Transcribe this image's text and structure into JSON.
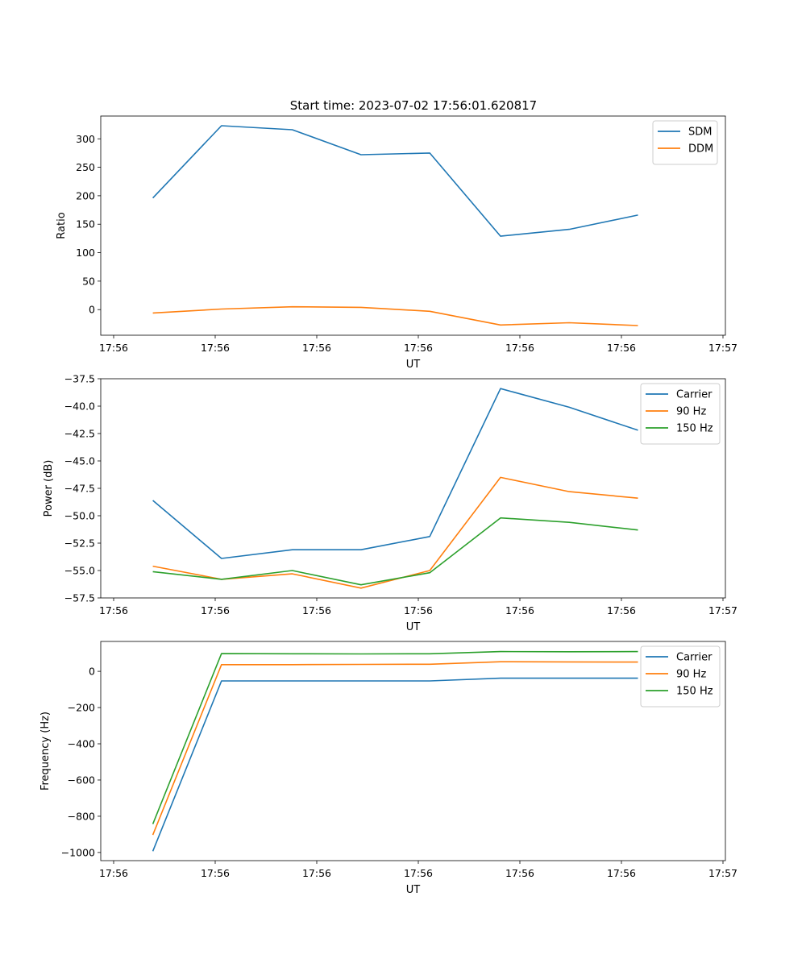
{
  "chart_data": [
    {
      "type": "line",
      "title": "Start time: 2023-07-02 17:56:01.620817",
      "xlabel": "UT",
      "ylabel": "Ratio",
      "x_ticks": [
        "17:56",
        "17:56",
        "17:56",
        "17:56",
        "17:56",
        "17:56",
        "17:57"
      ],
      "x_index": [
        0.5,
        1.16,
        1.84,
        2.5,
        3.16,
        3.84,
        4.5,
        5.16
      ],
      "xlim": [
        0,
        6
      ],
      "ylim": [
        -45,
        340
      ],
      "y_ticks": [
        0,
        50,
        100,
        150,
        200,
        250,
        300
      ],
      "y_tick_labels": [
        "0",
        "50",
        "100",
        "150",
        "200",
        "250",
        "300"
      ],
      "legend_position": "upper right",
      "series": [
        {
          "name": "SDM",
          "color": "#1f77b4",
          "values": [
            196,
            323,
            316,
            272,
            275,
            129,
            141,
            166
          ]
        },
        {
          "name": "DDM",
          "color": "#ff7f0e",
          "values": [
            -6,
            1,
            5,
            4,
            -3,
            -27,
            -23,
            -28
          ]
        }
      ]
    },
    {
      "type": "line",
      "title": "",
      "xlabel": "UT",
      "ylabel": "Power (dB)",
      "x_ticks": [
        "17:56",
        "17:56",
        "17:56",
        "17:56",
        "17:56",
        "17:56",
        "17:57"
      ],
      "x_index": [
        0.5,
        1.16,
        1.84,
        2.5,
        3.16,
        3.84,
        4.5,
        5.16
      ],
      "xlim": [
        0,
        6
      ],
      "ylim": [
        -57.5,
        -37.5
      ],
      "y_ticks": [
        -57.5,
        -55.0,
        -52.5,
        -50.0,
        -47.5,
        -45.0,
        -42.5,
        -40.0,
        -37.5
      ],
      "y_tick_labels": [
        "−57.5",
        "−55.0",
        "−52.5",
        "−50.0",
        "−47.5",
        "−45.0",
        "−42.5",
        "−40.0",
        "−37.5"
      ],
      "legend_position": "upper right",
      "series": [
        {
          "name": "Carrier",
          "color": "#1f77b4",
          "values": [
            -48.6,
            -53.9,
            -53.1,
            -53.1,
            -51.9,
            -38.4,
            -40.1,
            -42.2
          ]
        },
        {
          "name": "90 Hz",
          "color": "#ff7f0e",
          "values": [
            -54.6,
            -55.8,
            -55.3,
            -56.6,
            -55.0,
            -46.5,
            -47.8,
            -48.4
          ]
        },
        {
          "name": "150 Hz",
          "color": "#2ca02c",
          "values": [
            -55.1,
            -55.8,
            -55.0,
            -56.3,
            -55.2,
            -50.2,
            -50.6,
            -51.3
          ]
        }
      ]
    },
    {
      "type": "line",
      "title": "",
      "xlabel": "UT",
      "ylabel": "Frequency (Hz)",
      "x_ticks": [
        "17:56",
        "17:56",
        "17:56",
        "17:56",
        "17:56",
        "17:56",
        "17:57"
      ],
      "x_index": [
        0.5,
        1.16,
        1.84,
        2.5,
        3.16,
        3.84,
        4.5,
        5.16
      ],
      "xlim": [
        0,
        6
      ],
      "ylim": [
        -1045,
        165
      ],
      "y_ticks": [
        -1000,
        -800,
        -600,
        -400,
        -200,
        0
      ],
      "y_tick_labels": [
        "−1000",
        "−800",
        "−600",
        "−400",
        "−200",
        "0"
      ],
      "legend_position": "upper right",
      "series": [
        {
          "name": "Carrier",
          "color": "#1f77b4",
          "values": [
            -993,
            -53,
            -53,
            -53,
            -53,
            -38,
            -38,
            -38
          ]
        },
        {
          "name": "90 Hz",
          "color": "#ff7f0e",
          "values": [
            -903,
            37,
            37,
            38,
            39,
            53,
            52,
            51
          ]
        },
        {
          "name": "150 Hz",
          "color": "#2ca02c",
          "values": [
            -843,
            98,
            97,
            96,
            97,
            109,
            108,
            109
          ]
        }
      ]
    }
  ]
}
